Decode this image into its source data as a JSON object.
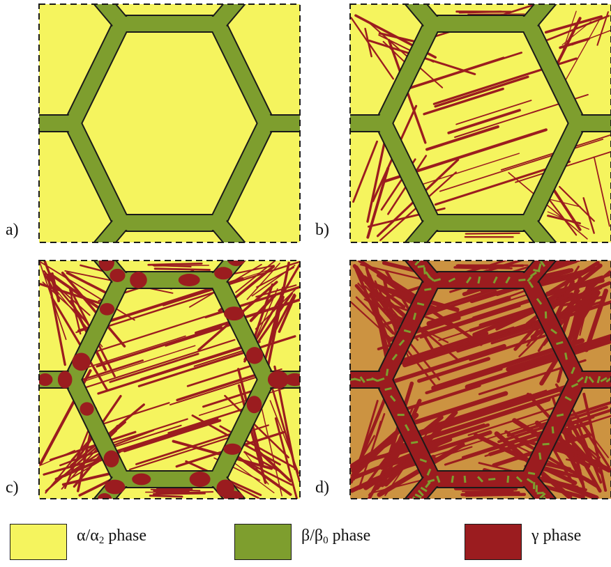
{
  "colors": {
    "alpha": "#f5f45e",
    "beta": "#7e9e2e",
    "gamma": "#9b1c1f",
    "outline": "#1a1a1a"
  },
  "panels": [
    {
      "label": "a)",
      "stage": "hexagonal beta grains, no gamma"
    },
    {
      "label": "b)",
      "stage": "thin gamma lamellae in grains"
    },
    {
      "label": "c)",
      "stage": "dense lamellae, gamma at grain boundary"
    },
    {
      "label": "d)",
      "stage": "gamma dominant, beta remnants"
    }
  ],
  "legend": [
    {
      "symbol": "α/α",
      "sub": "2",
      "text": "phase",
      "color_key": "alpha"
    },
    {
      "symbol": "β/β",
      "sub": "0",
      "text": "phase",
      "color_key": "beta"
    },
    {
      "symbol": "γ",
      "sub": "",
      "text": "phase",
      "color_key": "gamma"
    }
  ]
}
